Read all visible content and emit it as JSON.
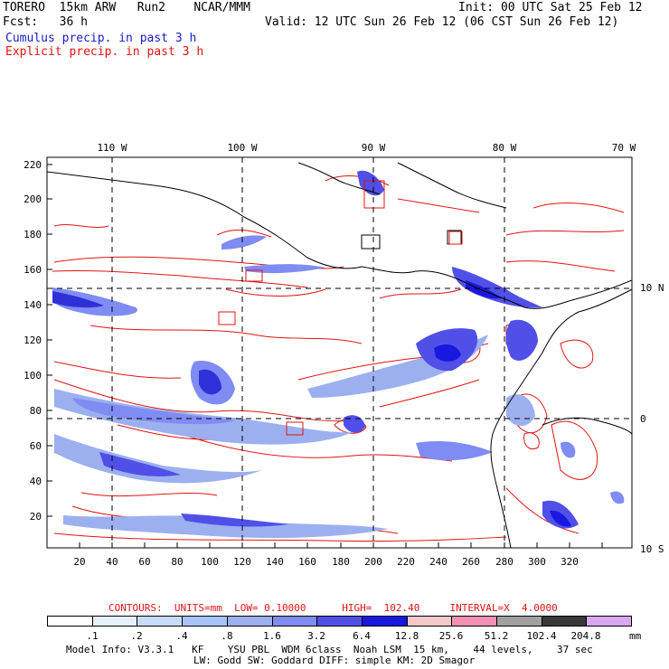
{
  "header": {
    "model": "TORERO  15km ARW   Run2    NCAR/MMM",
    "init": "Init: 00 UTC Sat 25 Feb 12",
    "fcst": "Fcst:   36 h",
    "valid": "Valid: 12 UTC Sun 26 Feb 12 (06 CST Sun 26 Feb 12)",
    "cumulus": "Cumulus precip. in past 3 h",
    "explicit": "Explicit precip. in past 3 h"
  },
  "map": {
    "top_lon_labels": [
      "110 W",
      "100 W",
      "90 W",
      "80 W",
      "70 W"
    ],
    "left_grid_labels": [
      "220",
      "200",
      "180",
      "160",
      "140",
      "120",
      "100",
      "80",
      "60",
      "40",
      "20"
    ],
    "bottom_grid_labels": [
      "20",
      "40",
      "60",
      "80",
      "100",
      "120",
      "140",
      "160",
      "180",
      "200",
      "220",
      "240",
      "260",
      "280",
      "300",
      "320"
    ],
    "right_lat_labels": [
      "10 N",
      "0",
      "10 S"
    ],
    "colors": {
      "coast": "#000000",
      "contour": "#e01414",
      "precip_light": "#c8dcf8",
      "precip_mid": "#7f8cf4",
      "precip_dark": "#3030d8"
    }
  },
  "footer": {
    "contours_line": "CONTOURS:  UNITS=mm  LOW= 0.10000      HIGH=  102.40     INTERVAL=X  4.0000",
    "colorbar_labels": [
      ".1",
      ".2",
      ".4",
      ".8",
      "1.6",
      "3.2",
      "6.4",
      "12.8",
      "25.6",
      "51.2",
      "102.4",
      "204.8"
    ],
    "colorbar_unit": "mm",
    "colorbar_colors": [
      "#ffffff",
      "#e8f0fc",
      "#c8dcf8",
      "#a8c4f4",
      "#9cb0f0",
      "#7f8cf4",
      "#5050e8",
      "#1818e0",
      "#f4c8c8",
      "#f490b4",
      "#a0a0a0",
      "#383838",
      "#d8a8f0"
    ],
    "model_info_1": "Model Info: V3.3.1   KF    YSU PBL  WDM 6class  Noah LSM  15 km,    44 levels,    37 sec",
    "model_info_2": "LW: Godd SW: Goddard DIFF: simple KM: 2D Smagor"
  }
}
